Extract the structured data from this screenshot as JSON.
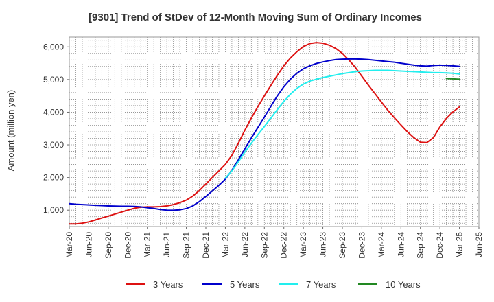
{
  "chart_data": {
    "type": "line",
    "title": "[9301]  Trend of StDev of 12-Month Moving Sum of Ordinary Incomes",
    "xlabel": "",
    "ylabel": "Amount (million yen)",
    "ylim": [
      500,
      6300
    ],
    "yticks": [
      1000,
      2000,
      3000,
      4000,
      5000,
      6000
    ],
    "ytick_labels": [
      "1,000",
      "2,000",
      "3,000",
      "4,000",
      "5,000",
      "6,000"
    ],
    "xlim": [
      "2020-03",
      "2025-06"
    ],
    "xtick_labels": [
      "Mar-20",
      "Jun-20",
      "Sep-20",
      "Dec-20",
      "Mar-21",
      "Jun-21",
      "Sep-21",
      "Dec-21",
      "Mar-22",
      "Jun-22",
      "Sep-22",
      "Dec-22",
      "Mar-23",
      "Jun-23",
      "Sep-23",
      "Dec-23",
      "Mar-24",
      "Jun-24",
      "Sep-24",
      "Dec-24",
      "Mar-25",
      "Jun-25"
    ],
    "grid": true,
    "legend_position": "bottom",
    "series": [
      {
        "name": "3 Years",
        "color": "#dd1111",
        "points": [
          [
            "2020-03",
            580
          ],
          [
            "2020-04",
            580
          ],
          [
            "2020-05",
            600
          ],
          [
            "2020-06",
            640
          ],
          [
            "2020-07",
            700
          ],
          [
            "2020-08",
            760
          ],
          [
            "2020-09",
            820
          ],
          [
            "2020-10",
            880
          ],
          [
            "2020-11",
            940
          ],
          [
            "2020-12",
            1000
          ],
          [
            "2021-01",
            1060
          ],
          [
            "2021-02",
            1090
          ],
          [
            "2021-03",
            1100
          ],
          [
            "2021-04",
            1100
          ],
          [
            "2021-05",
            1110
          ],
          [
            "2021-06",
            1130
          ],
          [
            "2021-07",
            1170
          ],
          [
            "2021-08",
            1230
          ],
          [
            "2021-09",
            1310
          ],
          [
            "2021-10",
            1430
          ],
          [
            "2021-11",
            1600
          ],
          [
            "2021-12",
            1800
          ],
          [
            "2022-01",
            2000
          ],
          [
            "2022-02",
            2200
          ],
          [
            "2022-03",
            2400
          ],
          [
            "2022-04",
            2680
          ],
          [
            "2022-05",
            3050
          ],
          [
            "2022-06",
            3450
          ],
          [
            "2022-07",
            3820
          ],
          [
            "2022-08",
            4170
          ],
          [
            "2022-09",
            4500
          ],
          [
            "2022-10",
            4820
          ],
          [
            "2022-11",
            5130
          ],
          [
            "2022-12",
            5420
          ],
          [
            "2022-13",
            5420
          ],
          [
            "2023-01",
            5660
          ],
          [
            "2023-02",
            5850
          ],
          [
            "2023-03",
            6010
          ],
          [
            "2023-04",
            6100
          ],
          [
            "2023-05",
            6130
          ],
          [
            "2023-06",
            6110
          ],
          [
            "2023-07",
            6050
          ],
          [
            "2023-08",
            5950
          ],
          [
            "2023-09",
            5800
          ],
          [
            "2023-10",
            5600
          ],
          [
            "2023-11",
            5370
          ],
          [
            "2023-12",
            5100
          ],
          [
            "2024-01",
            4830
          ],
          [
            "2024-02",
            4570
          ],
          [
            "2024-03",
            4310
          ],
          [
            "2024-04",
            4060
          ],
          [
            "2024-05",
            3830
          ],
          [
            "2024-06",
            3610
          ],
          [
            "2024-07",
            3400
          ],
          [
            "2024-08",
            3220
          ],
          [
            "2024-09",
            3080
          ],
          [
            "2024-10",
            3070
          ],
          [
            "2024-11",
            3220
          ],
          [
            "2024-12",
            3550
          ],
          [
            "2025-01",
            3810
          ],
          [
            "2025-02",
            4010
          ],
          [
            "2025-03",
            4160
          ]
        ]
      },
      {
        "name": "5 Years",
        "color": "#0000cc",
        "points": [
          [
            "2020-03",
            1200
          ],
          [
            "2020-04",
            1180
          ],
          [
            "2020-05",
            1170
          ],
          [
            "2020-06",
            1160
          ],
          [
            "2020-07",
            1150
          ],
          [
            "2020-08",
            1140
          ],
          [
            "2020-09",
            1130
          ],
          [
            "2020-10",
            1125
          ],
          [
            "2020-11",
            1120
          ],
          [
            "2020-12",
            1120
          ],
          [
            "2021-01",
            1115
          ],
          [
            "2021-02",
            1100
          ],
          [
            "2021-03",
            1075
          ],
          [
            "2021-04",
            1050
          ],
          [
            "2021-05",
            1020
          ],
          [
            "2021-06",
            1000
          ],
          [
            "2021-07",
            995
          ],
          [
            "2021-08",
            1010
          ],
          [
            "2021-09",
            1050
          ],
          [
            "2021-10",
            1130
          ],
          [
            "2021-11",
            1260
          ],
          [
            "2021-12",
            1420
          ],
          [
            "2022-01",
            1590
          ],
          [
            "2022-02",
            1760
          ],
          [
            "2022-03",
            1950
          ],
          [
            "2022-04",
            2220
          ],
          [
            "2022-05",
            2540
          ],
          [
            "2022-06",
            2880
          ],
          [
            "2022-07",
            3210
          ],
          [
            "2022-08",
            3530
          ],
          [
            "2022-09",
            3850
          ],
          [
            "2022-10",
            4180
          ],
          [
            "2022-11",
            4500
          ],
          [
            "2022-12",
            4780
          ],
          [
            "2023-01",
            5010
          ],
          [
            "2023-02",
            5190
          ],
          [
            "2023-03",
            5330
          ],
          [
            "2023-04",
            5420
          ],
          [
            "2023-05",
            5490
          ],
          [
            "2023-06",
            5540
          ],
          [
            "2023-07",
            5580
          ],
          [
            "2023-08",
            5610
          ],
          [
            "2023-09",
            5625
          ],
          [
            "2023-10",
            5630
          ],
          [
            "2023-11",
            5630
          ],
          [
            "2023-12",
            5625
          ],
          [
            "2024-01",
            5610
          ],
          [
            "2024-02",
            5590
          ],
          [
            "2024-03",
            5570
          ],
          [
            "2024-04",
            5550
          ],
          [
            "2024-05",
            5530
          ],
          [
            "2024-06",
            5500
          ],
          [
            "2024-07",
            5470
          ],
          [
            "2024-08",
            5440
          ],
          [
            "2024-09",
            5420
          ],
          [
            "2024-10",
            5410
          ],
          [
            "2024-11",
            5430
          ],
          [
            "2024-12",
            5440
          ],
          [
            "2025-01",
            5435
          ],
          [
            "2025-02",
            5420
          ],
          [
            "2025-03",
            5400
          ]
        ]
      },
      {
        "name": "7 Years",
        "color": "#22eeee",
        "points": [
          [
            "2022-03",
            1980
          ],
          [
            "2022-04",
            2200
          ],
          [
            "2022-05",
            2480
          ],
          [
            "2022-06",
            2780
          ],
          [
            "2022-07",
            3050
          ],
          [
            "2022-08",
            3310
          ],
          [
            "2022-09",
            3560
          ],
          [
            "2022-10",
            3820
          ],
          [
            "2022-11",
            4080
          ],
          [
            "2022-12",
            4330
          ],
          [
            "2023-01",
            4550
          ],
          [
            "2023-02",
            4730
          ],
          [
            "2023-03",
            4860
          ],
          [
            "2023-04",
            4950
          ],
          [
            "2023-05",
            5010
          ],
          [
            "2023-06",
            5060
          ],
          [
            "2023-07",
            5100
          ],
          [
            "2023-08",
            5140
          ],
          [
            "2023-09",
            5180
          ],
          [
            "2023-10",
            5210
          ],
          [
            "2023-11",
            5240
          ],
          [
            "2023-12",
            5260
          ],
          [
            "2024-01",
            5270
          ],
          [
            "2024-02",
            5280
          ],
          [
            "2024-03",
            5280
          ],
          [
            "2024-04",
            5280
          ],
          [
            "2024-05",
            5270
          ],
          [
            "2024-06",
            5260
          ],
          [
            "2024-07",
            5250
          ],
          [
            "2024-08",
            5240
          ],
          [
            "2024-09",
            5230
          ],
          [
            "2024-10",
            5220
          ],
          [
            "2024-11",
            5210
          ],
          [
            "2024-12",
            5210
          ],
          [
            "2025-01",
            5200
          ],
          [
            "2025-02",
            5190
          ],
          [
            "2025-03",
            5170
          ]
        ]
      },
      {
        "name": "10 Years",
        "color": "#228822",
        "points": [
          [
            "2025-01",
            5030
          ],
          [
            "2025-02",
            5020
          ],
          [
            "2025-03",
            5010
          ]
        ]
      }
    ]
  }
}
